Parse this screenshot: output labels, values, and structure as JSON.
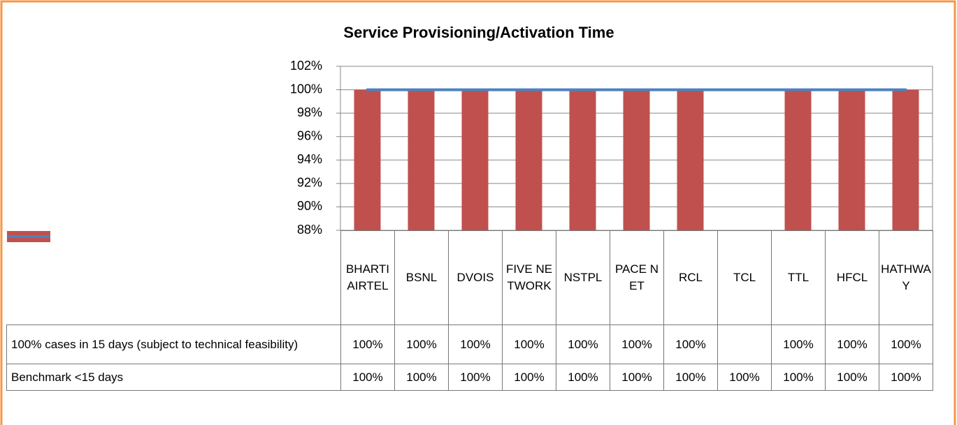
{
  "chart_data": {
    "type": "bar",
    "title": "Service Provisioning/Activation Time",
    "categories": [
      "BHARTI AIRTEL",
      "BSNL",
      "DVOIS",
      "FIVE NETWORK",
      "NSTPL",
      "PACE NET",
      "RCL",
      "TCL",
      "TTL",
      "HFCL",
      "HATHWAY"
    ],
    "series": [
      {
        "name": "100% cases in 15 days (subject to technical feasibility)",
        "type": "bar",
        "color": "#c0504d",
        "values": [
          100,
          100,
          100,
          100,
          100,
          100,
          100,
          null,
          100,
          100,
          100
        ],
        "value_labels": [
          "100%",
          "100%",
          "100%",
          "100%",
          "100%",
          "100%",
          "100%",
          null,
          "100%",
          "100%",
          "100%"
        ]
      },
      {
        "name": "Benchmark <15 days",
        "type": "line",
        "color": "#4f81bd",
        "values": [
          100,
          100,
          100,
          100,
          100,
          100,
          100,
          100,
          100,
          100,
          100
        ],
        "value_labels": [
          "100%",
          "100%",
          "100%",
          "100%",
          "100%",
          "100%",
          "100%",
          "100%",
          "100%",
          "100%",
          "100%"
        ]
      }
    ],
    "ylim": [
      88,
      102
    ],
    "yticks": [
      {
        "value": 88,
        "label": "88%"
      },
      {
        "value": 90,
        "label": "90%"
      },
      {
        "value": 92,
        "label": "92%"
      },
      {
        "value": 94,
        "label": "94%"
      },
      {
        "value": 96,
        "label": "96%"
      },
      {
        "value": 98,
        "label": "98%"
      },
      {
        "value": 100,
        "label": "100%"
      },
      {
        "value": 102,
        "label": "102%"
      }
    ],
    "grid": true
  }
}
